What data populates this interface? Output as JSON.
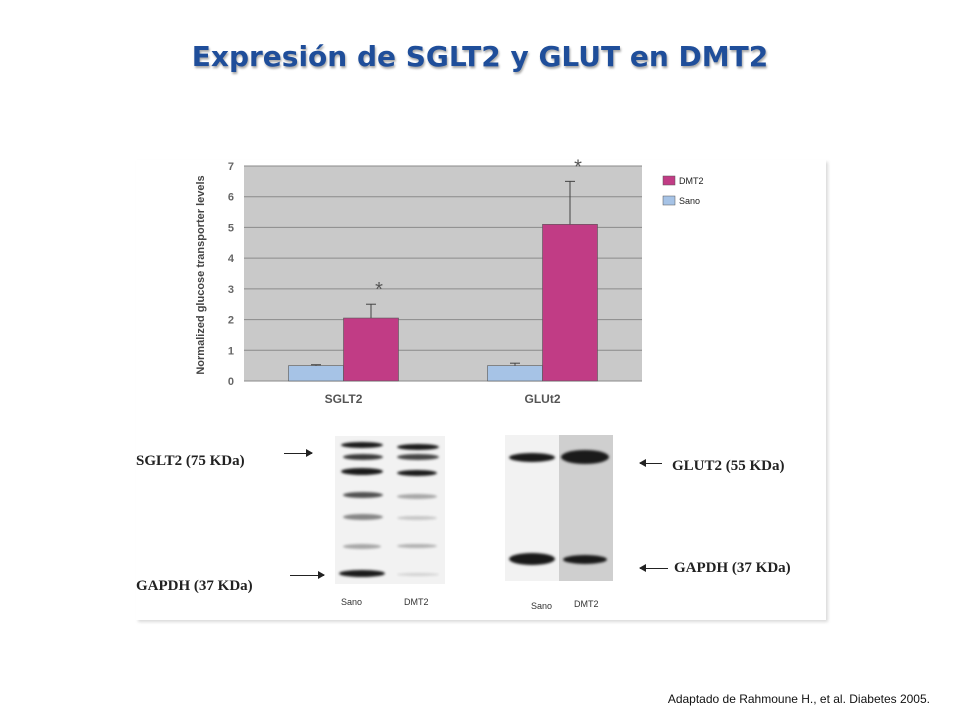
{
  "slide": {
    "title": "Expresión de SGLT2 y GLUT en DMT2",
    "citation": "Adaptado de Rahmoune H., et al. Diabetes 2005."
  },
  "chart_data": {
    "type": "bar",
    "ylabel": "Normalized glucose transporter levels",
    "categories": [
      "SGLT2",
      "GLUt2"
    ],
    "ylim": [
      0,
      7
    ],
    "yticks": [
      0,
      1,
      2,
      3,
      4,
      5,
      6,
      7
    ],
    "grid": true,
    "legend_position": "right",
    "series": [
      {
        "name": "Sano",
        "values": [
          0.5,
          0.5
        ],
        "errors": [
          0.03,
          0.08
        ],
        "color": "#a6c3e6"
      },
      {
        "name": "DMT2",
        "values": [
          2.05,
          5.1
        ],
        "errors": [
          0.45,
          1.4
        ],
        "color": "#c13c85"
      }
    ],
    "annotations": [
      "*",
      "*"
    ],
    "plot_background": "#c9c9c9"
  },
  "blots": {
    "left": {
      "label_top": "SGLT2 (75 KDa)",
      "label_bottom": "GAPDH (37 KDa)",
      "lanes": [
        "Sano",
        "DMT2"
      ]
    },
    "right": {
      "label_top": "GLUT2 (55 KDa)",
      "label_bottom": "GAPDH (37 KDa)",
      "lanes": [
        "Sano",
        "DMT2"
      ]
    }
  }
}
